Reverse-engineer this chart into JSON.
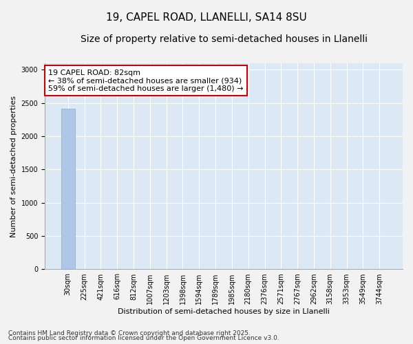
{
  "title": "19, CAPEL ROAD, LLANELLI, SA14 8SU",
  "subtitle": "Size of property relative to semi-detached houses in Llanelli",
  "xlabel": "Distribution of semi-detached houses by size in Llanelli",
  "ylabel": "Number of semi-detached properties",
  "footnote1": "Contains HM Land Registry data © Crown copyright and database right 2025.",
  "footnote2": "Contains public sector information licensed under the Open Government Licence v3.0.",
  "annotation_line1": "19 CAPEL ROAD: 82sqm",
  "annotation_line2": "← 38% of semi-detached houses are smaller (934)",
  "annotation_line3": "59% of semi-detached houses are larger (1,480) →",
  "bar_values": [
    2414,
    2,
    1,
    0,
    0,
    0,
    0,
    0,
    0,
    0,
    0,
    0,
    0,
    0,
    0,
    0,
    0,
    0,
    0,
    0
  ],
  "bar_color": "#aec6e8",
  "bar_edge_color": "#7faed4",
  "annotation_box_color": "#cc0000",
  "x_tick_labels": [
    "30sqm",
    "225sqm",
    "421sqm",
    "616sqm",
    "812sqm",
    "1007sqm",
    "1203sqm",
    "1398sqm",
    "1594sqm",
    "1789sqm",
    "1985sqm",
    "2180sqm",
    "2376sqm",
    "2571sqm",
    "2767sqm",
    "2962sqm",
    "3158sqm",
    "3353sqm",
    "3549sqm",
    "3744sqm"
  ],
  "ylim": [
    0,
    3100
  ],
  "yticks": [
    0,
    500,
    1000,
    1500,
    2000,
    2500,
    3000
  ],
  "plot_bg_color": "#dce9f5",
  "fig_bg_color": "#f2f2f2",
  "grid_color": "#ffffff",
  "title_fontsize": 11,
  "subtitle_fontsize": 10,
  "axis_label_fontsize": 8,
  "tick_fontsize": 7,
  "annotation_fontsize": 8,
  "footnote_fontsize": 6.5
}
